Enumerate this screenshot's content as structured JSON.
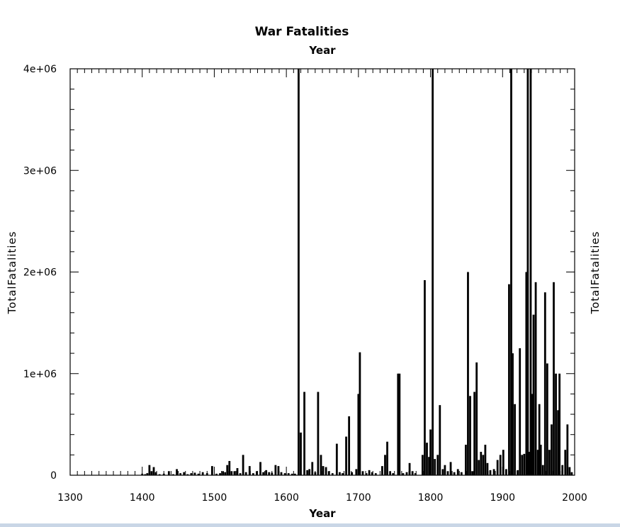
{
  "chart_data": {
    "type": "bar",
    "title": "War Fatalities",
    "xlabel": "Year",
    "xlabel_top": "Year",
    "ylabel": "TotalFatalities",
    "ylabel_right": "TotalFatalities",
    "xlim": [
      1300,
      2000
    ],
    "ylim": [
      0,
      4000000
    ],
    "x_ticks": [
      1300,
      1400,
      1500,
      1600,
      1700,
      1800,
      1900,
      2000
    ],
    "x_tick_labels": [
      "1300",
      "1400",
      "1500",
      "1600",
      "1700",
      "1800",
      "1900",
      "2000"
    ],
    "y_ticks": [
      0,
      1000000,
      2000000,
      3000000,
      4000000
    ],
    "y_tick_labels": [
      "0",
      "1e+06",
      "2e+06",
      "3e+06",
      "4e+06"
    ],
    "grid": false,
    "bar_color": "#000000",
    "points": [
      [
        1400,
        15000
      ],
      [
        1404,
        10000
      ],
      [
        1407,
        20000
      ],
      [
        1410,
        100000
      ],
      [
        1413,
        40000
      ],
      [
        1416,
        80000
      ],
      [
        1419,
        30000
      ],
      [
        1424,
        10000
      ],
      [
        1430,
        15000
      ],
      [
        1437,
        40000
      ],
      [
        1443,
        10000
      ],
      [
        1448,
        60000
      ],
      [
        1453,
        20000
      ],
      [
        1458,
        30000
      ],
      [
        1463,
        10000
      ],
      [
        1468,
        20000
      ],
      [
        1473,
        25000
      ],
      [
        1478,
        15000
      ],
      [
        1484,
        30000
      ],
      [
        1490,
        20000
      ],
      [
        1497,
        90000
      ],
      [
        1503,
        15000
      ],
      [
        1508,
        20000
      ],
      [
        1512,
        40000
      ],
      [
        1515,
        30000
      ],
      [
        1518,
        100000
      ],
      [
        1521,
        140000
      ],
      [
        1524,
        40000
      ],
      [
        1528,
        40000
      ],
      [
        1532,
        70000
      ],
      [
        1536,
        20000
      ],
      [
        1540,
        200000
      ],
      [
        1544,
        30000
      ],
      [
        1549,
        90000
      ],
      [
        1554,
        20000
      ],
      [
        1559,
        40000
      ],
      [
        1564,
        130000
      ],
      [
        1568,
        30000
      ],
      [
        1572,
        50000
      ],
      [
        1576,
        30000
      ],
      [
        1580,
        25000
      ],
      [
        1585,
        100000
      ],
      [
        1589,
        90000
      ],
      [
        1593,
        30000
      ],
      [
        1598,
        20000
      ],
      [
        1603,
        20000
      ],
      [
        1608,
        15000
      ],
      [
        1612,
        15000
      ],
      [
        1617,
        4000000
      ],
      [
        1620,
        420000
      ],
      [
        1625,
        820000
      ],
      [
        1629,
        50000
      ],
      [
        1632,
        60000
      ],
      [
        1636,
        130000
      ],
      [
        1640,
        30000
      ],
      [
        1644,
        820000
      ],
      [
        1648,
        200000
      ],
      [
        1651,
        90000
      ],
      [
        1655,
        80000
      ],
      [
        1659,
        40000
      ],
      [
        1664,
        20000
      ],
      [
        1670,
        310000
      ],
      [
        1674,
        30000
      ],
      [
        1678,
        20000
      ],
      [
        1683,
        380000
      ],
      [
        1687,
        580000
      ],
      [
        1691,
        30000
      ],
      [
        1697,
        60000
      ],
      [
        1700,
        800000
      ],
      [
        1702,
        1210000
      ],
      [
        1706,
        40000
      ],
      [
        1711,
        20000
      ],
      [
        1715,
        50000
      ],
      [
        1719,
        30000
      ],
      [
        1724,
        20000
      ],
      [
        1733,
        90000
      ],
      [
        1737,
        200000
      ],
      [
        1740,
        330000
      ],
      [
        1744,
        40000
      ],
      [
        1748,
        20000
      ],
      [
        1755,
        1000000
      ],
      [
        1757,
        1000000
      ],
      [
        1762,
        20000
      ],
      [
        1767,
        30000
      ],
      [
        1771,
        120000
      ],
      [
        1775,
        40000
      ],
      [
        1779,
        20000
      ],
      [
        1789,
        200000
      ],
      [
        1792,
        1920000
      ],
      [
        1795,
        320000
      ],
      [
        1798,
        180000
      ],
      [
        1800,
        450000
      ],
      [
        1803,
        4000000
      ],
      [
        1806,
        160000
      ],
      [
        1810,
        200000
      ],
      [
        1813,
        690000
      ],
      [
        1817,
        60000
      ],
      [
        1820,
        100000
      ],
      [
        1824,
        40000
      ],
      [
        1828,
        130000
      ],
      [
        1833,
        30000
      ],
      [
        1838,
        60000
      ],
      [
        1843,
        30000
      ],
      [
        1849,
        300000
      ],
      [
        1852,
        2000000
      ],
      [
        1855,
        780000
      ],
      [
        1858,
        40000
      ],
      [
        1861,
        820000
      ],
      [
        1864,
        1110000
      ],
      [
        1867,
        150000
      ],
      [
        1870,
        230000
      ],
      [
        1873,
        200000
      ],
      [
        1876,
        300000
      ],
      [
        1879,
        120000
      ],
      [
        1883,
        50000
      ],
      [
        1888,
        60000
      ],
      [
        1893,
        150000
      ],
      [
        1897,
        200000
      ],
      [
        1901,
        250000
      ],
      [
        1905,
        60000
      ],
      [
        1909,
        1880000
      ],
      [
        1912,
        4000000
      ],
      [
        1914,
        1200000
      ],
      [
        1917,
        700000
      ],
      [
        1921,
        50000
      ],
      [
        1924,
        1250000
      ],
      [
        1927,
        200000
      ],
      [
        1930,
        210000
      ],
      [
        1933,
        2000000
      ],
      [
        1935,
        4000000
      ],
      [
        1937,
        230000
      ],
      [
        1939,
        4000000
      ],
      [
        1941,
        800000
      ],
      [
        1943,
        1580000
      ],
      [
        1946,
        1900000
      ],
      [
        1949,
        250000
      ],
      [
        1951,
        700000
      ],
      [
        1953,
        300000
      ],
      [
        1956,
        100000
      ],
      [
        1959,
        1800000
      ],
      [
        1962,
        1100000
      ],
      [
        1965,
        250000
      ],
      [
        1968,
        500000
      ],
      [
        1971,
        1900000
      ],
      [
        1974,
        1000000
      ],
      [
        1977,
        640000
      ],
      [
        1979,
        1000000
      ],
      [
        1983,
        100000
      ],
      [
        1987,
        250000
      ],
      [
        1990,
        500000
      ],
      [
        1993,
        80000
      ],
      [
        1996,
        30000
      ]
    ]
  }
}
